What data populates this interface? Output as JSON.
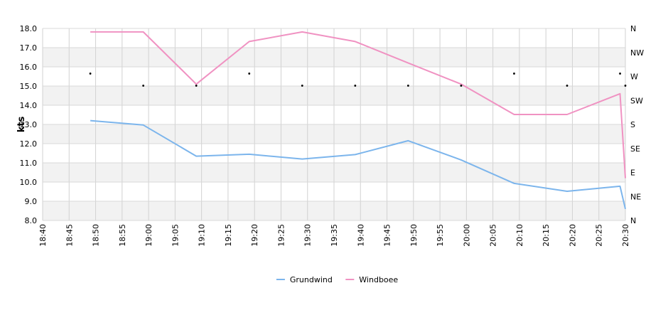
{
  "chart_data": {
    "type": "line",
    "xlabel": "",
    "ylabel": "kts",
    "ylim": [
      8,
      18
    ],
    "y_ticks": [
      "8.0",
      "9.0",
      "10.0",
      "11.0",
      "12.0",
      "13.0",
      "14.0",
      "15.0",
      "16.0",
      "17.0",
      "18.0"
    ],
    "x_ticks": [
      "18:40",
      "18:45",
      "18:50",
      "18:55",
      "19:00",
      "19:05",
      "19:10",
      "19:15",
      "19:20",
      "19:25",
      "19:30",
      "19:35",
      "19:40",
      "19:45",
      "19:50",
      "19:55",
      "20:00",
      "20:05",
      "20:10",
      "20:15",
      "20:20",
      "20:25",
      "20:30"
    ],
    "x_range": [
      "18:40",
      "20:30"
    ],
    "y2_ticks": [
      "N",
      "NE",
      "E",
      "SE",
      "S",
      "SW",
      "W",
      "NW",
      "N"
    ],
    "grid": true,
    "legend_position": "bottom",
    "series": [
      {
        "name": "Grundwind",
        "color": "#7cb5ec",
        "points": [
          [
            "18:49",
            13.2
          ],
          [
            "18:59",
            12.97
          ],
          [
            "19:09",
            11.35
          ],
          [
            "19:19",
            11.45
          ],
          [
            "19:29",
            11.2
          ],
          [
            "19:39",
            11.43
          ],
          [
            "19:49",
            12.15
          ],
          [
            "19:59",
            11.15
          ],
          [
            "20:09",
            9.93
          ],
          [
            "20:19",
            9.52
          ],
          [
            "20:29",
            9.78
          ],
          [
            "20:30",
            8.6
          ]
        ]
      },
      {
        "name": "Windboee",
        "color": "#f092c2",
        "points": [
          [
            "18:49",
            17.82
          ],
          [
            "18:59",
            17.82
          ],
          [
            "19:09",
            15.1
          ],
          [
            "19:19",
            17.32
          ],
          [
            "19:29",
            17.82
          ],
          [
            "19:39",
            17.32
          ],
          [
            "19:49",
            16.2
          ],
          [
            "19:59",
            15.1
          ],
          [
            "20:09",
            13.52
          ],
          [
            "20:19",
            13.52
          ],
          [
            "20:29",
            14.6
          ],
          [
            "20:30",
            10.2
          ]
        ]
      }
    ],
    "direction_markers": [
      [
        "18:49",
        15.65
      ],
      [
        "18:59",
        15.02
      ],
      [
        "19:09",
        15.02
      ],
      [
        "19:19",
        15.65
      ],
      [
        "19:29",
        15.02
      ],
      [
        "19:39",
        15.02
      ],
      [
        "19:49",
        15.02
      ],
      [
        "19:59",
        15.02
      ],
      [
        "20:09",
        15.65
      ],
      [
        "20:19",
        15.02
      ],
      [
        "20:29",
        15.65
      ],
      [
        "20:30",
        15.02
      ]
    ]
  }
}
